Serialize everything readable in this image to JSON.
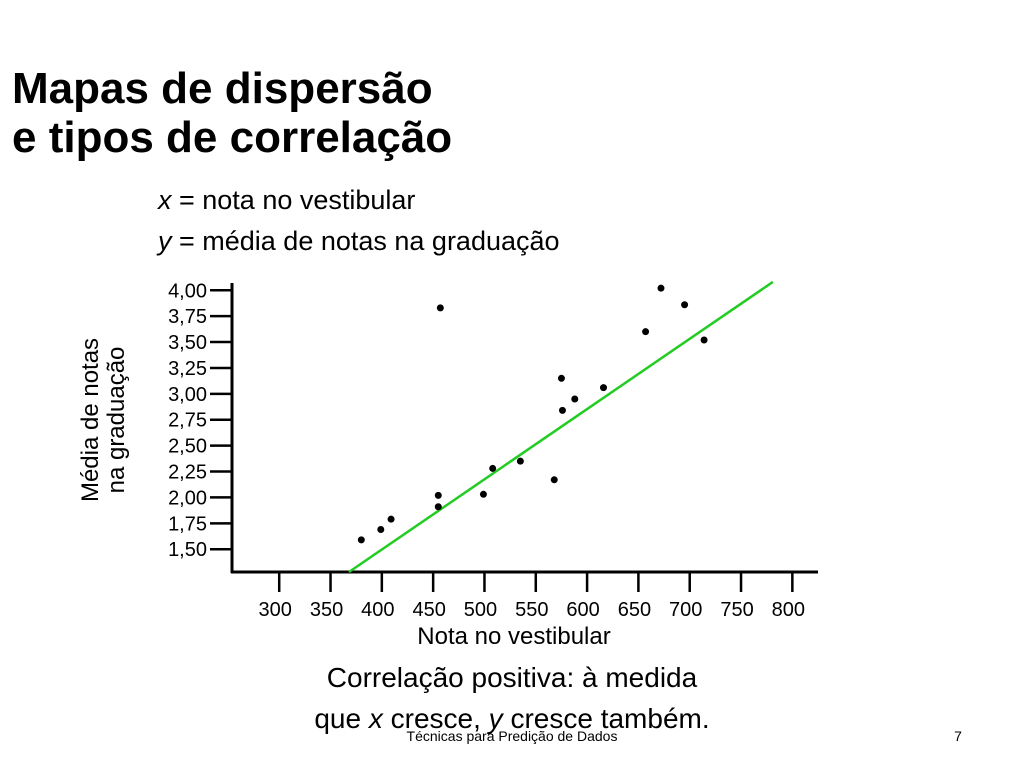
{
  "title": [
    "Mapas de dispersão",
    "e tipos de correlação"
  ],
  "subtitle": [
    {
      "var": "x",
      "rest": " = nota no vestibular"
    },
    {
      "var": "y",
      "rest": " = média de notas na graduação"
    }
  ],
  "chart_data": {
    "type": "scatter",
    "ylabel": [
      "Média de notas",
      "na graduação"
    ],
    "xlabel": "Nota no vestibular",
    "x": [
      380,
      399,
      409,
      455,
      455,
      457,
      499,
      508,
      535,
      568,
      575,
      576,
      588,
      616,
      657,
      672,
      695,
      714
    ],
    "values": [
      1.59,
      1.69,
      1.79,
      2.02,
      1.91,
      3.83,
      2.03,
      2.28,
      2.35,
      2.17,
      3.15,
      2.84,
      2.95,
      3.06,
      3.6,
      4.02,
      3.86,
      3.52
    ],
    "color": "#000000",
    "trendline": {
      "x": [
        368,
        781
      ],
      "y": [
        1.28,
        4.08
      ],
      "color": "#22cc22"
    },
    "xlim": [
      254,
      825
    ],
    "xticks": [
      300,
      350,
      400,
      450,
      500,
      550,
      600,
      650,
      700,
      750,
      800
    ],
    "ylim": [
      1.28,
      4.07
    ],
    "yticks": [
      {
        "value": 1.5,
        "label": "1,50"
      },
      {
        "value": 1.75,
        "label": "1,75"
      },
      {
        "value": 2,
        "label": "2,00"
      },
      {
        "value": 2.25,
        "label": "2,25"
      },
      {
        "value": 2.5,
        "label": "2,50"
      },
      {
        "value": 2.75,
        "label": "2,75"
      },
      {
        "value": 3,
        "label": "3,00"
      },
      {
        "value": 3.25,
        "label": "3,25"
      },
      {
        "value": 3.5,
        "label": "3,50"
      },
      {
        "value": 3.75,
        "label": "3,75"
      },
      {
        "value": 4,
        "label": "4,00"
      }
    ],
    "grid": false
  },
  "caption": {
    "line1": "Correlação positiva: à medida",
    "line2": [
      "que ",
      "x",
      " cresce, ",
      "y",
      " cresce também."
    ]
  },
  "footer": "Técnicas para Predição de Dados",
  "page_number": 7
}
